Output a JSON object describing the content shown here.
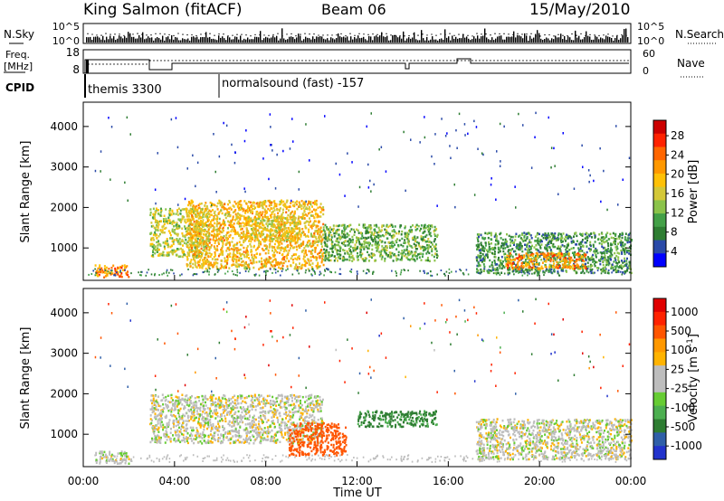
{
  "header": {
    "station": "King Salmon (fitACF)",
    "beam": "Beam 06",
    "date": "15/May/2010"
  },
  "strip_panels": {
    "noise_left_label": "N.Sky",
    "noise_right_label": "N.Search",
    "noise_ticks_left": [
      "10^5",
      "10^0"
    ],
    "noise_ticks_right": [
      "10^5",
      "10^0"
    ],
    "freq_label": [
      "Freq.",
      "[MHz]"
    ],
    "freq_ticks": [
      "18",
      "8"
    ],
    "nave_label": "Nave",
    "nave_ticks": [
      "60",
      "0"
    ],
    "cpid_label": "CPID",
    "cpid_segments": [
      {
        "text": "themis 3300",
        "start_hour": 0.5
      },
      {
        "text": "normalsound (fast) -157",
        "start_hour": 6.0
      }
    ]
  },
  "chart_data": [
    {
      "type": "heatmap",
      "name": "power",
      "xlabel": "",
      "ylabel": "Slant Range [km]",
      "xlim": [
        0,
        24
      ],
      "ylim": [
        200,
        4600
      ],
      "yticks": [
        1000,
        2000,
        3000,
        4000
      ],
      "colorbar": {
        "label": "Power [dB]",
        "ticks": [
          "28",
          "24",
          "20",
          "16",
          "12",
          "8",
          "4"
        ],
        "colors": [
          "#0000ff",
          "#2a4aa8",
          "#2e7d32",
          "#43a047",
          "#8bc34a",
          "#d4c838",
          "#ffc107",
          "#ff9800",
          "#ff6600",
          "#ff2200",
          "#cc0000"
        ]
      },
      "echo_regions": [
        {
          "t0": 0.5,
          "t1": 2.0,
          "r0": 300,
          "r1": 600,
          "level": 22
        },
        {
          "t0": 2.9,
          "t1": 5.5,
          "r0": 800,
          "r1": 2000,
          "level": 14
        },
        {
          "t0": 4.5,
          "t1": 10.5,
          "r0": 500,
          "r1": 2200,
          "level": 18
        },
        {
          "t0": 7.0,
          "t1": 9.5,
          "r0": 1200,
          "r1": 1800,
          "level": 16
        },
        {
          "t0": 10.5,
          "t1": 15.5,
          "r0": 700,
          "r1": 1600,
          "level": 10
        },
        {
          "t0": 17.2,
          "t1": 24.0,
          "r0": 400,
          "r1": 1400,
          "level": 8
        },
        {
          "t0": 18.5,
          "t1": 22.0,
          "r0": 500,
          "r1": 900,
          "level": 22
        }
      ]
    },
    {
      "type": "heatmap",
      "name": "velocity",
      "xlabel": "Time UT",
      "ylabel": "Slant Range [km]",
      "xlim": [
        0,
        24
      ],
      "ylim": [
        200,
        4600
      ],
      "yticks": [
        1000,
        2000,
        3000,
        4000
      ],
      "xticks": [
        "00:00",
        "04:00",
        "08:00",
        "12:00",
        "16:00",
        "20:00",
        "00:00"
      ],
      "colorbar": {
        "label": "Velocity [m s",
        "label_sup": "-1",
        "label_end": "]",
        "ticks": [
          "1000",
          "500",
          "100",
          "25",
          "-25",
          "-100",
          "-500",
          "-1000"
        ],
        "colors": [
          "#2233cc",
          "#2f5fa8",
          "#2e7d32",
          "#4caf50",
          "#66cc33",
          "#bdbdbd",
          "#bdbdbd",
          "#ffb300",
          "#ff9800",
          "#ff5500",
          "#ff2200",
          "#e00000"
        ]
      },
      "echo_regions": [
        {
          "t0": 0.5,
          "t1": 2.0,
          "r0": 300,
          "r1": 600,
          "vel": 0
        },
        {
          "t0": 2.9,
          "t1": 10.5,
          "r0": 800,
          "r1": 2000,
          "vel": 0
        },
        {
          "t0": 9.0,
          "t1": 11.5,
          "r0": 500,
          "r1": 1300,
          "vel": -150
        },
        {
          "t0": 12.0,
          "t1": 15.5,
          "r0": 1200,
          "r1": 1600,
          "vel": 120
        },
        {
          "t0": 17.2,
          "t1": 24.0,
          "r0": 400,
          "r1": 1400,
          "vel": 0
        }
      ]
    }
  ]
}
